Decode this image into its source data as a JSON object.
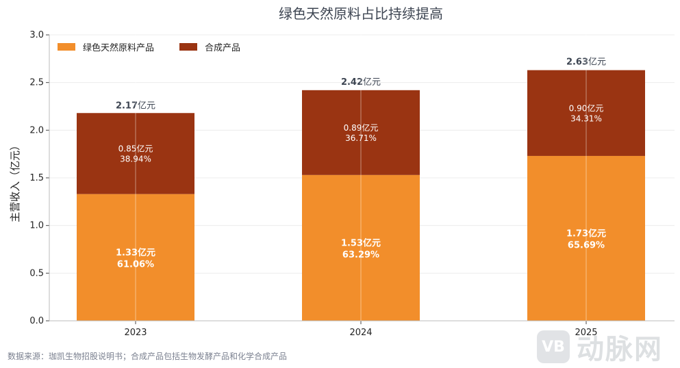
{
  "colors": {
    "natural": "#F28E2B",
    "synthetic": "#9A3412",
    "grid": "#ececec",
    "axis": "#bbbbbb",
    "title": "#3d4552"
  },
  "source_text": "数据来源：珈凯生物招股说明书；合成产品包括生物发酵产品和化学合成产品",
  "watermark": {
    "logo_text": "VB",
    "brand": "动脉网"
  },
  "chart_data": {
    "type": "bar",
    "stacked": true,
    "title": "绿色天然原料占比持续提高",
    "ylabel": "主营收入（亿元）",
    "xlabel": "",
    "categories": [
      "2023",
      "2024",
      "2025"
    ],
    "ylim": [
      0,
      3.0
    ],
    "yticks": [
      "0.0",
      "0.5",
      "1.0",
      "1.5",
      "2.0",
      "2.5",
      "3.0"
    ],
    "legend_position": "top-left",
    "grid": true,
    "series": [
      {
        "name": "绿色天然原料产品",
        "values": [
          1.33,
          1.53,
          1.73
        ],
        "labels_value": [
          "1.33亿元",
          "1.53亿元",
          "1.73亿元"
        ],
        "labels_pct": [
          "61.06%",
          "63.29%",
          "65.69%"
        ]
      },
      {
        "name": "合成产品",
        "values": [
          0.85,
          0.89,
          0.9
        ],
        "labels_value": [
          "0.85亿元",
          "0.89亿元",
          "0.90亿元"
        ],
        "labels_pct": [
          "38.94%",
          "36.71%",
          "34.31%"
        ]
      }
    ],
    "totals": [
      {
        "num": "2.17",
        "unit": "亿元",
        "value": 2.17
      },
      {
        "num": "2.42",
        "unit": "亿元",
        "value": 2.42
      },
      {
        "num": "2.63",
        "unit": "亿元",
        "value": 2.63
      }
    ]
  }
}
